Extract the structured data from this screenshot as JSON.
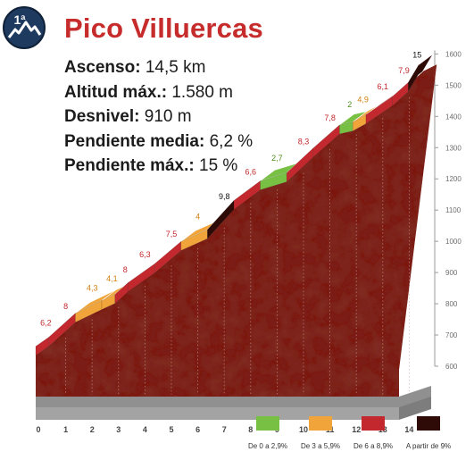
{
  "badge": {
    "text": "1ª"
  },
  "title": "Pico Villuercas",
  "stats": [
    {
      "key": "Ascenso:",
      "value": "14,5 km"
    },
    {
      "key": "Altitud máx.:",
      "value": "1.580 m"
    },
    {
      "key": "Desnivel:",
      "value": "910 m"
    },
    {
      "key": "Pendiente media:",
      "value": "6,2 %"
    },
    {
      "key": "Pendiente máx.:",
      "value": "15 %"
    }
  ],
  "legend": [
    {
      "label": "De 0 a 2,9%",
      "color": "#78c043"
    },
    {
      "label": "De 3 a 5,9%",
      "color": "#f0a43a"
    },
    {
      "label": "De 6 a 8,9%",
      "color": "#c3282e"
    },
    {
      "label": "A partir de 9%",
      "color": "#2e0b07"
    }
  ],
  "colors": {
    "title": "#c62c2c",
    "badge": "#1e3a5f",
    "wall": "#7c1d14",
    "base": "#909090",
    "axis": "#6e6e6e"
  },
  "chart_data": {
    "type": "area",
    "xlabel": "",
    "ylabel": "",
    "xlim": [
      0,
      14.5
    ],
    "ylim": [
      600,
      1600
    ],
    "x_ticks": [
      0,
      1,
      2,
      3,
      4,
      5,
      6,
      7,
      8,
      9,
      10,
      11,
      12,
      13,
      14
    ],
    "y_ticks": [
      600,
      700,
      800,
      900,
      1000,
      1100,
      1200,
      1300,
      1400,
      1500,
      1600
    ],
    "segments": [
      {
        "from_km": 0,
        "to_km": 0.5,
        "gradient": "6,2",
        "class": "red"
      },
      {
        "from_km": 0.5,
        "to_km": 1.5,
        "gradient": "8",
        "class": "red"
      },
      {
        "from_km": 1.5,
        "to_km": 2.5,
        "gradient": "4,3",
        "class": "orange"
      },
      {
        "from_km": 2.5,
        "to_km": 3,
        "gradient": "4,1",
        "class": "orange"
      },
      {
        "from_km": 3,
        "to_km": 3.5,
        "gradient": "8",
        "class": "red"
      },
      {
        "from_km": 3.5,
        "to_km": 4.5,
        "gradient": "6,3",
        "class": "red"
      },
      {
        "from_km": 4.5,
        "to_km": 5.5,
        "gradient": "7,5",
        "class": "red"
      },
      {
        "from_km": 5.5,
        "to_km": 6.5,
        "gradient": "4",
        "class": "orange"
      },
      {
        "from_km": 6.5,
        "to_km": 7.5,
        "gradient": "9,8",
        "class": "black"
      },
      {
        "from_km": 7.5,
        "to_km": 8.5,
        "gradient": "6,6",
        "class": "red"
      },
      {
        "from_km": 8.5,
        "to_km": 9.5,
        "gradient": "2,7",
        "class": "green"
      },
      {
        "from_km": 9.5,
        "to_km": 10.5,
        "gradient": "8,3",
        "class": "red"
      },
      {
        "from_km": 10.5,
        "to_km": 11.5,
        "gradient": "7,8",
        "class": "red"
      },
      {
        "from_km": 11.5,
        "to_km": 12,
        "gradient": "2",
        "class": "green"
      },
      {
        "from_km": 12,
        "to_km": 12.5,
        "gradient": "4,9",
        "class": "orange"
      },
      {
        "from_km": 12.5,
        "to_km": 13.5,
        "gradient": "6,1",
        "class": "red"
      },
      {
        "from_km": 13.5,
        "to_km": 14.1,
        "gradient": "7,9",
        "class": "red"
      },
      {
        "from_km": 14.1,
        "to_km": 14.5,
        "gradient": "15",
        "class": "black"
      }
    ]
  }
}
